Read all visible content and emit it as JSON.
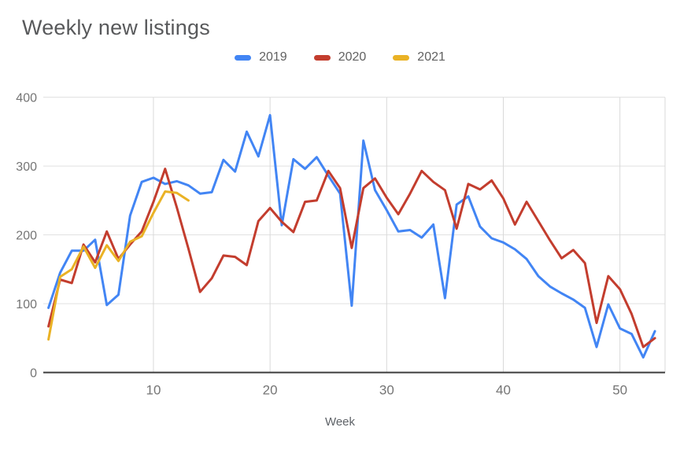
{
  "title": "Weekly new listings",
  "legend": [
    {
      "label": "2019",
      "color": "#4285f4"
    },
    {
      "label": "2020",
      "color": "#c33d2e"
    },
    {
      "label": "2021",
      "color": "#eab225"
    }
  ],
  "x_axis": {
    "title": "Week",
    "ticks": [
      10,
      20,
      30,
      40,
      50
    ]
  },
  "y_axis": {
    "ticks": [
      0,
      100,
      200,
      300,
      400
    ]
  },
  "chart_data": {
    "type": "line",
    "title": "Weekly new listings",
    "xlabel": "Week",
    "ylabel": "",
    "x_range": [
      1,
      53
    ],
    "ylim": [
      0,
      400
    ],
    "grid": true,
    "legend_position": "top",
    "series": [
      {
        "name": "2019",
        "color": "#4285f4",
        "values": [
          94,
          145,
          177,
          177,
          193,
          98,
          113,
          228,
          277,
          283,
          274,
          278,
          272,
          260,
          262,
          309,
          292,
          350,
          314,
          374,
          214,
          310,
          296,
          313,
          286,
          260,
          97,
          337,
          265,
          236,
          205,
          207,
          196,
          215,
          108,
          244,
          256,
          212,
          195,
          189,
          179,
          165,
          140,
          125,
          115,
          106,
          94,
          37,
          99,
          64,
          56,
          22,
          60
        ]
      },
      {
        "name": "2020",
        "color": "#c33d2e",
        "values": [
          67,
          135,
          130,
          186,
          160,
          205,
          165,
          186,
          205,
          248,
          296,
          240,
          180,
          117,
          137,
          170,
          168,
          156,
          220,
          239,
          219,
          204,
          248,
          250,
          293,
          268,
          181,
          268,
          282,
          254,
          230,
          260,
          293,
          277,
          265,
          209,
          274,
          266,
          279,
          253,
          215,
          248,
          220,
          192,
          166,
          178,
          159,
          72,
          140,
          121,
          85,
          37,
          50
        ]
      },
      {
        "name": "2021",
        "color": "#eab225",
        "values": [
          48,
          139,
          150,
          183,
          152,
          185,
          162,
          190,
          198,
          232,
          263,
          261,
          250
        ]
      }
    ]
  }
}
